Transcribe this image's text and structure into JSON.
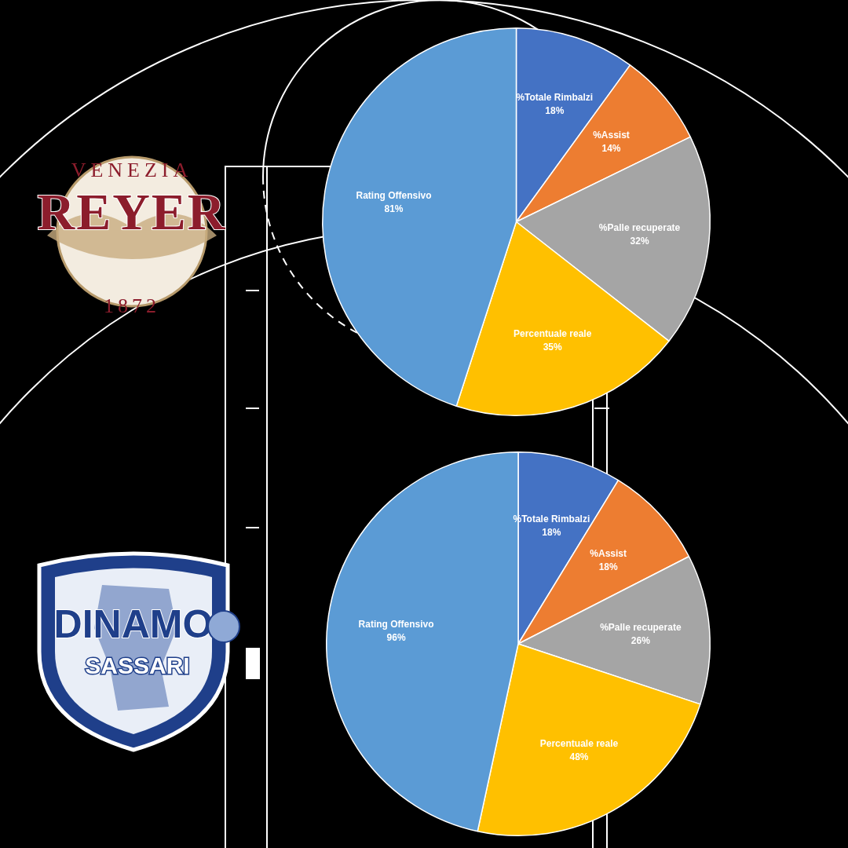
{
  "chart_data": [
    {
      "type": "pie",
      "categories": [
        "%Totale Rimbalzi",
        "%Assist",
        "%Palle recuperate",
        "Percentuale reale",
        "Rating Offensivo"
      ],
      "values": [
        18,
        14,
        32,
        35,
        81
      ],
      "value_labels": [
        "18%",
        "14%",
        "32%",
        "35%",
        "81%"
      ],
      "colors": [
        "#4472c4",
        "#ed7d31",
        "#a5a5a5",
        "#ffc000",
        "#5b9bd5"
      ],
      "data_labels": true,
      "legend": false
    },
    {
      "type": "pie",
      "categories": [
        "%Totale Rimbalzi",
        "%Assist",
        "%Palle recuperate",
        "Percentuale reale",
        "Rating Offensivo"
      ],
      "values": [
        18,
        18,
        26,
        48,
        96
      ],
      "value_labels": [
        "18%",
        "18%",
        "26%",
        "48%",
        "96%"
      ],
      "colors": [
        "#4472c4",
        "#ed7d31",
        "#a5a5a5",
        "#ffc000",
        "#5b9bd5"
      ],
      "data_labels": true,
      "legend": false
    }
  ],
  "logos": [
    {
      "texts": [
        "VENEZIA",
        "REYER",
        "1872"
      ]
    },
    {
      "texts": [
        "DINAMO",
        "SASSARI"
      ]
    }
  ]
}
